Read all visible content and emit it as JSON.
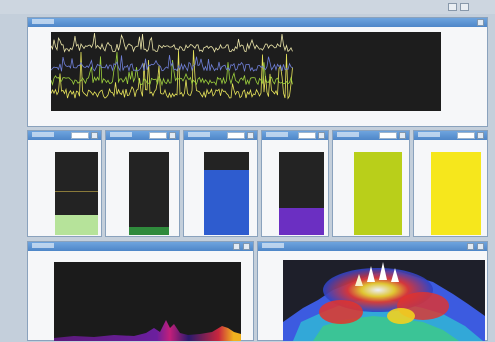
{
  "app": {
    "title": ""
  },
  "colors": {
    "panel_header": "#5b93d4",
    "plot_background": "#1d1d1d",
    "trace_yellow": "#e6e35a",
    "trace_green": "#9ccf3d",
    "trace_blue": "#6f7fd6",
    "trace_cream": "#e9e3a8"
  },
  "icons": [
    "minimize-icon",
    "close-icon"
  ],
  "timeseries": {
    "title": "",
    "series": [
      {
        "color": "#e6e35a",
        "level": 0.22,
        "spikes": 0.55,
        "noise": 0.06
      },
      {
        "color": "#9ccf3d",
        "level": 0.38,
        "spikes": 0.35,
        "noise": 0.05
      },
      {
        "color": "#6f7fd6",
        "level": 0.55,
        "spikes": 0.12,
        "noise": 0.05
      },
      {
        "color": "#e9e3a8",
        "level": 0.8,
        "spikes": 0.18,
        "noise": 0.05
      }
    ],
    "data_extent_fraction": 0.62
  },
  "meters": [
    {
      "title": "",
      "fill_color": "#b6e39a",
      "level": 0.24,
      "marker": 0.52
    },
    {
      "title": "",
      "fill_color": "#2f8a3c",
      "level": 0.1,
      "marker": null
    },
    {
      "title": "",
      "fill_color": "#2e5ccf",
      "level": 0.78,
      "marker": null
    },
    {
      "title": "",
      "fill_color": "#6b2fc2",
      "level": 0.33,
      "marker": null
    },
    {
      "title": "",
      "fill_color": "#b9cf1a",
      "level": 1.0,
      "marker": null
    },
    {
      "title": "",
      "fill_color": "#f6e71c",
      "level": 1.0,
      "marker": null
    }
  ],
  "spectrum": {
    "title": ""
  },
  "waterfall": {
    "title": ""
  }
}
